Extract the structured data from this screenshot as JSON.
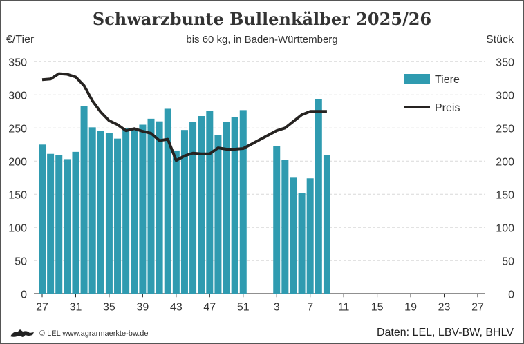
{
  "chart_data": {
    "type": "bar",
    "title": "Schwarzbunte Bullenkälber 2025/26",
    "subtitle": "bis 60 kg, in Baden-Württemberg",
    "ylabel_left": "€/Tier",
    "ylabel_right": "Stück",
    "ylim": [
      0,
      350
    ],
    "yticks": [
      0,
      50,
      100,
      150,
      200,
      250,
      300,
      350
    ],
    "grid": true,
    "legend_position": "top-right",
    "categories": [
      27,
      28,
      29,
      30,
      31,
      32,
      33,
      34,
      35,
      36,
      37,
      38,
      39,
      40,
      41,
      42,
      43,
      44,
      45,
      46,
      47,
      48,
      49,
      50,
      51,
      52,
      1,
      2,
      3,
      4,
      5,
      6,
      7,
      8,
      9,
      10,
      11,
      12,
      13,
      14,
      15,
      16,
      17,
      18,
      19,
      20,
      21,
      22,
      23,
      24,
      25,
      26,
      27
    ],
    "xtick_labels": [
      "27",
      "31",
      "35",
      "39",
      "43",
      "47",
      "51",
      "3",
      "7",
      "11",
      "15",
      "19",
      "23",
      "27"
    ],
    "series": [
      {
        "name": "Tiere",
        "type": "bar",
        "axis": "right",
        "color": "#2f9bb0",
        "values": [
          225,
          211,
          209,
          203,
          214,
          283,
          251,
          246,
          243,
          234,
          250,
          248,
          255,
          264,
          260,
          279,
          216,
          247,
          259,
          268,
          276,
          239,
          259,
          266,
          277,
          null,
          null,
          null,
          223,
          202,
          176,
          152,
          174,
          294,
          209,
          null,
          null,
          null,
          null,
          null,
          null,
          null,
          null,
          null,
          null,
          null,
          null,
          null,
          null,
          null,
          null,
          null,
          null
        ]
      },
      {
        "name": "Preis",
        "type": "line",
        "axis": "left",
        "color": "#262321",
        "values": [
          323,
          324,
          332,
          331,
          327,
          314,
          291,
          274,
          261,
          255,
          246,
          249,
          245,
          242,
          231,
          233,
          201,
          208,
          212,
          211,
          211,
          220,
          218,
          218,
          219,
          null,
          null,
          null,
          246,
          250,
          260,
          270,
          275,
          275,
          275,
          null,
          null,
          null,
          null,
          null,
          null,
          null,
          null,
          null,
          null,
          null,
          null,
          null,
          null,
          null,
          null,
          null,
          null
        ]
      }
    ]
  },
  "footer": {
    "copyright": "© LEL www.agrarmaerkte-bw.de",
    "source": "Daten: LEL, LBV-BW, BHLV"
  }
}
